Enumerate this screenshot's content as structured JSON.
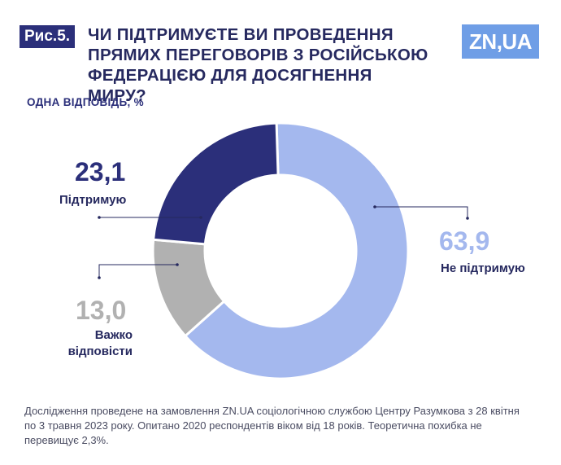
{
  "figure_label": "Рис.5.",
  "logo": "ZN,UA",
  "chart_data": {
    "type": "pie",
    "title": "ЧИ ПІДТРИМУЄТЕ ВИ ПРОВЕДЕННЯ ПРЯМИХ ПЕРЕГОВОРІВ З РОСІЙСЬКОЮ ФЕДЕРАЦІЄЮ ДЛЯ ДОСЯГНЕННЯ МИРУ?",
    "subtitle": "ОДНА ВІДПОВІДЬ, %",
    "slices": [
      {
        "label": "Не підтримую",
        "value": 63.9,
        "display": "63,9",
        "color": "#a4b8ee"
      },
      {
        "label": "Важко відповісти",
        "value": 13.0,
        "display": "13,0",
        "color": "#b1b1b1"
      },
      {
        "label": "Підтримую",
        "value": 23.1,
        "display": "23,1",
        "color": "#2b2f7a"
      }
    ]
  },
  "footnote": "Дослідження проведене на замовлення ZN.UA соціологічною службою Центру Разумкова з 28 квітня по 3 травня 2023 року. Опитано 2020 респондентів віком від 18 років. Теоретична похибка не перевищує 2,3%.",
  "colors": {
    "title": "#26295f",
    "accent": "#2b2f7a",
    "logo": "#6f9ee6"
  }
}
